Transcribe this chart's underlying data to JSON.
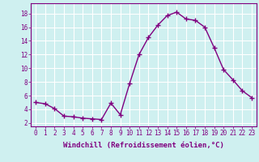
{
  "x": [
    0,
    1,
    2,
    3,
    4,
    5,
    6,
    7,
    8,
    9,
    10,
    11,
    12,
    13,
    14,
    15,
    16,
    17,
    18,
    19,
    20,
    21,
    22,
    23
  ],
  "y": [
    5.0,
    4.8,
    4.1,
    3.0,
    2.9,
    2.7,
    2.6,
    2.5,
    4.9,
    3.2,
    7.8,
    12.0,
    14.5,
    16.3,
    17.7,
    18.2,
    17.2,
    17.0,
    16.0,
    13.0,
    9.8,
    8.3,
    6.7,
    5.7
  ],
  "line_color": "#800080",
  "marker": "+",
  "marker_size": 4,
  "bg_color": "#cff0f0",
  "grid_color": "#ffffff",
  "ylabel_ticks": [
    2,
    4,
    6,
    8,
    10,
    12,
    14,
    16,
    18
  ],
  "xlabel_ticks": [
    0,
    1,
    2,
    3,
    4,
    5,
    6,
    7,
    8,
    9,
    10,
    11,
    12,
    13,
    14,
    15,
    16,
    17,
    18,
    19,
    20,
    21,
    22,
    23
  ],
  "xlabel": "Windchill (Refroidissement éolien,°C)",
  "ylim": [
    1.5,
    19.5
  ],
  "xlim": [
    -0.5,
    23.5
  ],
  "tick_fontsize": 5.5,
  "xlabel_fontsize": 6.5
}
